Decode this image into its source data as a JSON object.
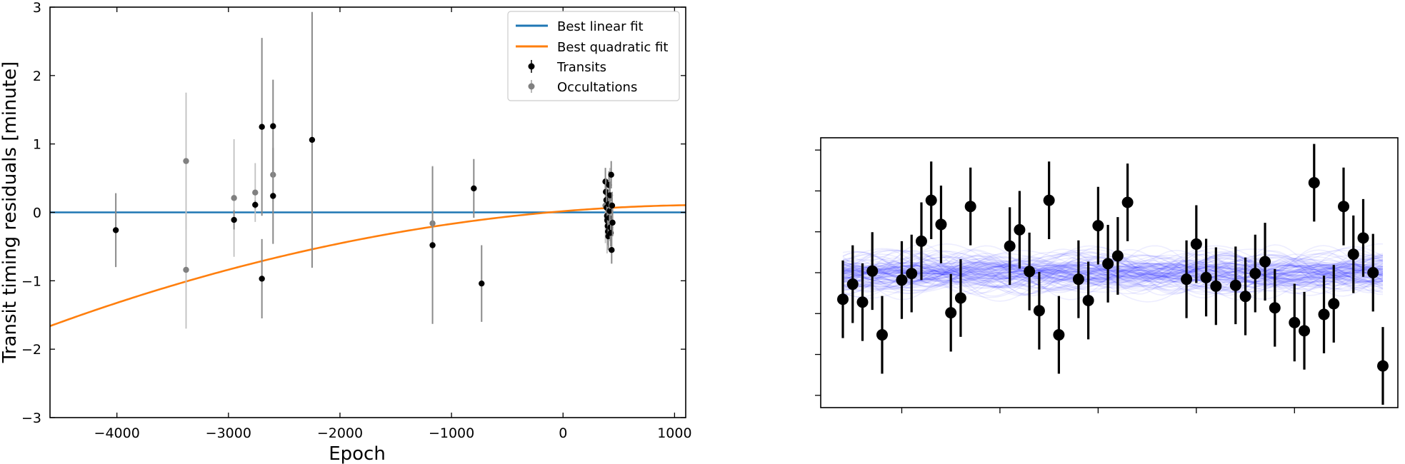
{
  "chart_data": [
    {
      "type": "scatter",
      "title": "",
      "xlabel": "Epoch",
      "ylabel": "Transit timing residuals [minute]",
      "xlim": [
        -4600,
        1100
      ],
      "ylim": [
        -3,
        3
      ],
      "xticks": [
        -4000,
        -3000,
        -2000,
        -1000,
        0,
        1000
      ],
      "yticks": [
        -3,
        -2,
        -1,
        0,
        1,
        2,
        3
      ],
      "xtick_labels": [
        "−4000",
        "−3000",
        "−2000",
        "−1000",
        "0",
        "1000"
      ],
      "ytick_labels": [
        "−3",
        "−2",
        "−1",
        "0",
        "1",
        "2",
        "3"
      ],
      "grid": false,
      "legend_position": "top-right",
      "colors": {
        "linear": "#1f77b4",
        "quadratic": "#ff7f0e",
        "transits": "#000000",
        "occultations": "#808080"
      },
      "series": [
        {
          "name": "Best linear fit",
          "kind": "line",
          "coeffs": [
            0,
            0,
            0
          ]
        },
        {
          "name": "Best quadratic fit",
          "kind": "line",
          "coeffs": [
            0.017,
            0.000135,
            -5e-08
          ]
        },
        {
          "name": "Transits",
          "kind": "errorbar",
          "points": [
            {
              "x": -4010,
              "y": -0.26,
              "err": 0.54
            },
            {
              "x": -2950,
              "y": -0.11,
              "err": 0.14
            },
            {
              "x": -2760,
              "y": 0.11,
              "err": 0.06
            },
            {
              "x": -2700,
              "y": 1.25,
              "err": 1.3
            },
            {
              "x": -2700,
              "y": -0.97,
              "err": 0.58
            },
            {
              "x": -2600,
              "y": 1.26,
              "err": 0.68
            },
            {
              "x": -2600,
              "y": 0.24,
              "err": 0.7
            },
            {
              "x": -2250,
              "y": 1.06,
              "err": 1.87
            },
            {
              "x": -1170,
              "y": -0.48,
              "err": 1.15
            },
            {
              "x": -800,
              "y": 0.35,
              "err": 0.43
            },
            {
              "x": -730,
              "y": -1.04,
              "err": 0.56
            },
            {
              "x": 380,
              "y": 0.45,
              "err": 0.2
            },
            {
              "x": 384,
              "y": 0.3,
              "err": 0.2
            },
            {
              "x": 388,
              "y": 0.18,
              "err": 0.2
            },
            {
              "x": 391,
              "y": 0.07,
              "err": 0.2
            },
            {
              "x": 394,
              "y": -0.05,
              "err": 0.2
            },
            {
              "x": 397,
              "y": -0.12,
              "err": 0.2
            },
            {
              "x": 400,
              "y": -0.2,
              "err": 0.2
            },
            {
              "x": 403,
              "y": -0.28,
              "err": 0.2
            },
            {
              "x": 406,
              "y": -0.35,
              "err": 0.2
            },
            {
              "x": 409,
              "y": 0.12,
              "err": 0.2
            },
            {
              "x": 412,
              "y": 0.4,
              "err": 0.2
            },
            {
              "x": 415,
              "y": -0.08,
              "err": 0.2
            },
            {
              "x": 418,
              "y": 0.02,
              "err": 0.2
            },
            {
              "x": 421,
              "y": 0.25,
              "err": 0.2
            },
            {
              "x": 424,
              "y": -0.22,
              "err": 0.2
            },
            {
              "x": 428,
              "y": -0.3,
              "err": 0.2
            },
            {
              "x": 432,
              "y": 0.55,
              "err": 0.2
            },
            {
              "x": 436,
              "y": -0.55,
              "err": 0.2
            },
            {
              "x": 440,
              "y": 0.1,
              "err": 0.2
            },
            {
              "x": 444,
              "y": -0.15,
              "err": 0.2
            }
          ]
        },
        {
          "name": "Occultations",
          "kind": "errorbar",
          "points": [
            {
              "x": -3380,
              "y": 0.75,
              "err": 1.0
            },
            {
              "x": -3380,
              "y": -0.84,
              "err": 0.86
            },
            {
              "x": -2950,
              "y": 0.21,
              "err": 0.86
            },
            {
              "x": -2760,
              "y": 0.29,
              "err": 0.43
            },
            {
              "x": -2600,
              "y": 0.55,
              "err": 0.4
            },
            {
              "x": -1170,
              "y": -0.16,
              "err": 0.84
            },
            {
              "x": 380,
              "y": 0.1,
              "err": 0.55
            },
            {
              "x": 395,
              "y": -0.1,
              "err": 0.5
            },
            {
              "x": 420,
              "y": 0.2,
              "err": 0.45
            }
          ]
        }
      ]
    },
    {
      "type": "scatter",
      "title": "",
      "xlabel": "",
      "ylabel": "",
      "xlim": [
        0,
        57
      ],
      "ylim": [
        -3.3,
        3.3
      ],
      "yticks": [
        -3,
        -2,
        -1,
        0,
        1,
        2,
        3
      ],
      "xticks": [
        8,
        18,
        28,
        38,
        48
      ],
      "tick_labels_shown": false,
      "grid": false,
      "colors": {
        "points": "#000000",
        "model_band": "#0000ff"
      },
      "model_band": {
        "center": 0.0,
        "halfwidth": 0.75,
        "waves": 120
      },
      "points": [
        {
          "x": 2,
          "y": -0.65,
          "err": 0.95
        },
        {
          "x": 3,
          "y": -0.28,
          "err": 0.95
        },
        {
          "x": 4,
          "y": -0.72,
          "err": 0.95
        },
        {
          "x": 5,
          "y": 0.04,
          "err": 0.95
        },
        {
          "x": 6,
          "y": -1.52,
          "err": 0.95
        },
        {
          "x": 8,
          "y": -0.18,
          "err": 0.95
        },
        {
          "x": 9,
          "y": -0.02,
          "err": 0.95
        },
        {
          "x": 10,
          "y": 0.77,
          "err": 0.95
        },
        {
          "x": 11,
          "y": 1.77,
          "err": 0.95
        },
        {
          "x": 12,
          "y": 1.18,
          "err": 0.95
        },
        {
          "x": 13,
          "y": -0.98,
          "err": 0.95
        },
        {
          "x": 14,
          "y": -0.62,
          "err": 0.95
        },
        {
          "x": 15,
          "y": 1.62,
          "err": 0.95
        },
        {
          "x": 19,
          "y": 0.65,
          "err": 0.95
        },
        {
          "x": 20,
          "y": 1.05,
          "err": 0.95
        },
        {
          "x": 21,
          "y": 0.03,
          "err": 0.95
        },
        {
          "x": 22,
          "y": -0.93,
          "err": 0.95
        },
        {
          "x": 23,
          "y": 1.77,
          "err": 0.95
        },
        {
          "x": 24,
          "y": -1.52,
          "err": 0.95
        },
        {
          "x": 26,
          "y": -0.16,
          "err": 0.95
        },
        {
          "x": 27,
          "y": -0.68,
          "err": 0.95
        },
        {
          "x": 28,
          "y": 1.15,
          "err": 0.95
        },
        {
          "x": 29,
          "y": 0.22,
          "err": 0.95
        },
        {
          "x": 30,
          "y": 0.41,
          "err": 0.95
        },
        {
          "x": 31,
          "y": 1.72,
          "err": 0.95
        },
        {
          "x": 37,
          "y": -0.16,
          "err": 0.95
        },
        {
          "x": 38,
          "y": 0.7,
          "err": 0.95
        },
        {
          "x": 39,
          "y": -0.12,
          "err": 0.95
        },
        {
          "x": 40,
          "y": -0.33,
          "err": 0.95
        },
        {
          "x": 42,
          "y": -0.31,
          "err": 0.95
        },
        {
          "x": 43,
          "y": -0.58,
          "err": 0.95
        },
        {
          "x": 44,
          "y": -0.02,
          "err": 0.95
        },
        {
          "x": 45,
          "y": 0.27,
          "err": 0.95
        },
        {
          "x": 46,
          "y": -0.86,
          "err": 0.95
        },
        {
          "x": 48,
          "y": -1.22,
          "err": 0.95
        },
        {
          "x": 49,
          "y": -1.42,
          "err": 0.95
        },
        {
          "x": 50,
          "y": 2.2,
          "err": 0.95
        },
        {
          "x": 51,
          "y": -1.02,
          "err": 0.95
        },
        {
          "x": 52,
          "y": -0.76,
          "err": 0.95
        },
        {
          "x": 53,
          "y": 1.62,
          "err": 0.95
        },
        {
          "x": 54,
          "y": 0.45,
          "err": 0.95
        },
        {
          "x": 55,
          "y": 0.85,
          "err": 0.95
        },
        {
          "x": 56,
          "y": 0.0,
          "err": 0.95
        },
        {
          "x": 57,
          "y": -2.28,
          "err": 0.95
        }
      ]
    }
  ]
}
